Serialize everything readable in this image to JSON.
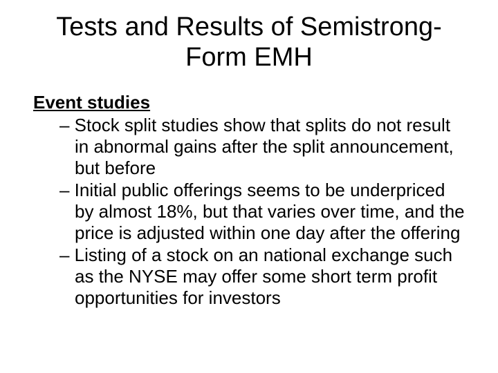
{
  "slide": {
    "title": "Tests and Results of Semistrong-Form EMH",
    "subheading": "Event studies",
    "bullets": [
      "– Stock split studies show that splits do not result in abnormal gains after the split announcement, but before",
      "– Initial public offerings seems to be underpriced by almost 18%, but that varies over time, and the price is adjusted within one day after the offering",
      "– Listing of a stock on an national exchange such as the NYSE may offer some short term profit opportunities for investors"
    ],
    "colors": {
      "background": "#ffffff",
      "text": "#000000"
    },
    "typography": {
      "title_fontsize": 38,
      "body_fontsize": 26,
      "font_family": "Arial"
    }
  }
}
